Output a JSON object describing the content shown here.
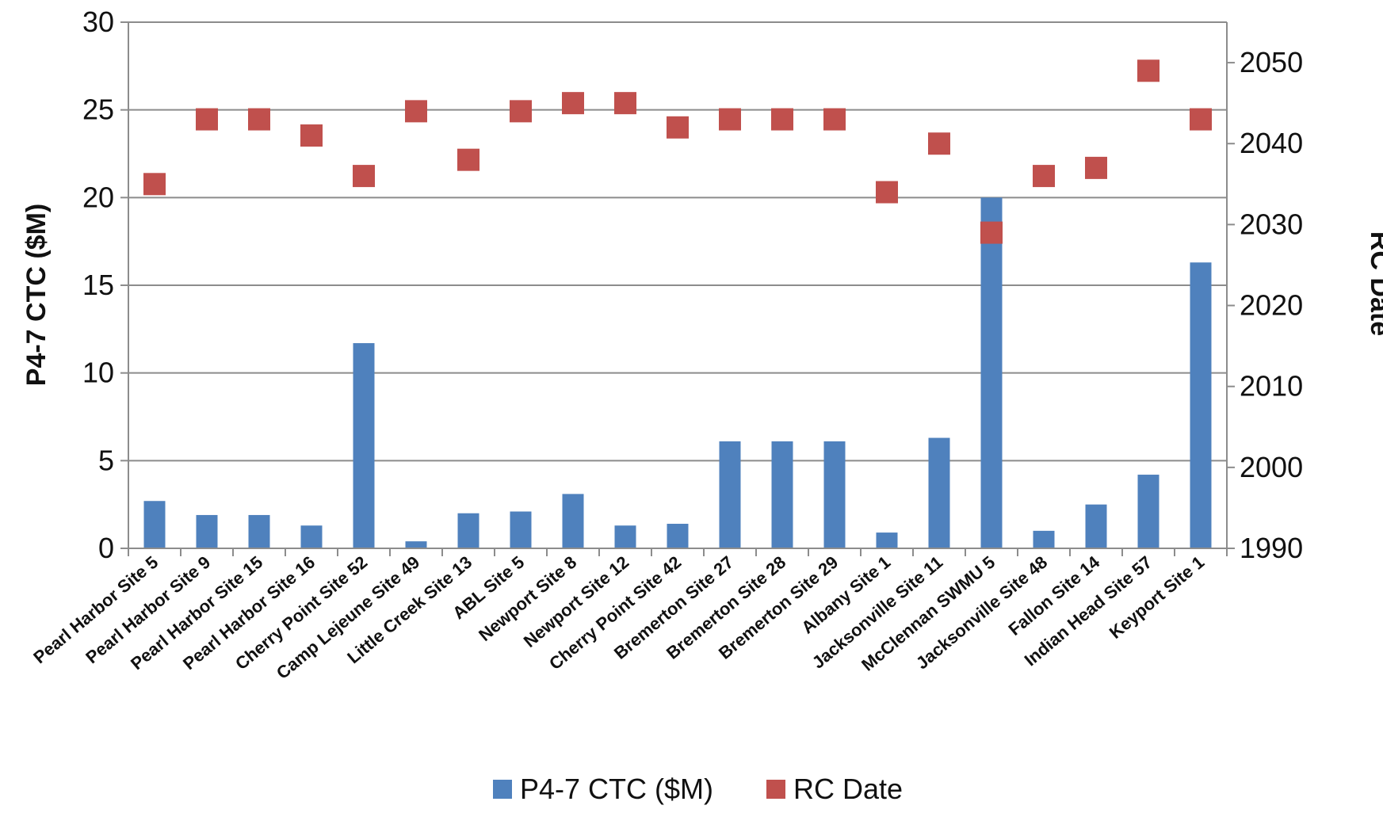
{
  "chart_data": {
    "type": "bar",
    "categories": [
      "Pearl Harbor Site 5",
      "Pearl Harbor Site 9",
      "Pearl Harbor Site 15",
      "Pearl Harbor Site 16",
      "Cherry Point Site 52",
      "Camp Lejeune Site 49",
      "Little Creek Site 13",
      "ABL Site 5",
      "Newport Site 8",
      "Newport Site 12",
      "Cherry Point Site 42",
      "Bremerton Site 27",
      "Bremerton Site 28",
      "Bremerton Site 29",
      "Albany Site 1",
      "Jacksonville Site 11",
      "McClennan SWMU 5",
      "Jacksonville Site 48",
      "Fallon Site 14",
      "Indian Head Site 57",
      "Keyport Site 1"
    ],
    "series": [
      {
        "name": "P4-7 CTC ($M)",
        "type": "bar",
        "axis": "left",
        "color": "#4f81bd",
        "values": [
          2.7,
          1.9,
          1.9,
          1.3,
          11.7,
          0.4,
          2.0,
          2.1,
          3.1,
          1.3,
          1.4,
          6.1,
          6.1,
          6.1,
          0.9,
          6.3,
          20.0,
          1.0,
          2.5,
          4.2,
          16.3
        ]
      },
      {
        "name": "RC Date",
        "type": "scatter",
        "axis": "right",
        "color": "#c0504d",
        "values": [
          2035,
          2043,
          2043,
          2041,
          2036,
          2044,
          2038,
          2044,
          2045,
          2045,
          2042,
          2043,
          2043,
          2043,
          2034,
          2040,
          2029,
          2036,
          2037,
          2049,
          2043
        ]
      }
    ],
    "ylabel": "P4-7 CTC ($M)",
    "y2label": "RC Date",
    "ylim": [
      0,
      30
    ],
    "y2lim": [
      1990,
      2055
    ],
    "yticks": [
      "0",
      "5",
      "10",
      "15",
      "20",
      "25",
      "30"
    ],
    "y2ticks": [
      "1990",
      "2000",
      "2010",
      "2020",
      "2030",
      "2040",
      "2050"
    ],
    "grid": true,
    "legend": "bottom"
  }
}
